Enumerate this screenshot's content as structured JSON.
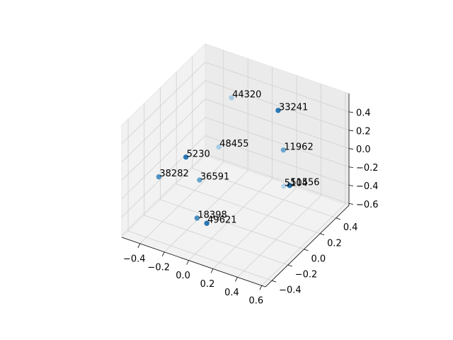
{
  "chart_data": {
    "type": "scatter3d",
    "point_labels": [
      "44320",
      "33241",
      "48455",
      "11962",
      "5230",
      "38282",
      "36591",
      "5104",
      "51556",
      "18398",
      "49621"
    ],
    "x": [
      -0.13,
      0.22,
      -0.3,
      0.23,
      -0.3,
      -0.45,
      -0.32,
      0.16,
      0.42,
      -0.07,
      0.01
    ],
    "y": [
      0.25,
      0.3,
      0.35,
      0.35,
      -0.06,
      -0.17,
      0.14,
      0.46,
      0.14,
      -0.27,
      -0.27
    ],
    "z": [
      0.47,
      0.45,
      -0.23,
      -0.02,
      0.01,
      -0.18,
      -0.42,
      -0.54,
      -0.14,
      -0.37,
      -0.39
    ],
    "colors": [
      "#a6cbe5",
      "#2c79b5",
      "#a9cde6",
      "#6ea7d0",
      "#2a77b4",
      "#4f92c4",
      "#6aa4ce",
      "#b7d5ea",
      "#1f6ca8",
      "#4a8ec1",
      "#2a77b4"
    ],
    "xlim": [
      -0.55,
      0.63
    ],
    "ylim": [
      -0.48,
      0.56
    ],
    "zlim": [
      -0.62,
      0.6
    ],
    "xticks": [
      {
        "value": -0.4,
        "label": "−0.4"
      },
      {
        "value": -0.2,
        "label": "−0.2"
      },
      {
        "value": 0.0,
        "label": "0.0"
      },
      0.2,
      0.4,
      0.6
    ],
    "yticks": [
      {
        "value": -0.4,
        "label": "−0.4"
      },
      {
        "value": -0.2,
        "label": "−0.2"
      },
      {
        "value": 0.0,
        "label": "0.0"
      },
      0.2,
      0.4
    ],
    "zticks": [
      {
        "value": -0.6,
        "label": "−0.6"
      },
      {
        "value": -0.4,
        "label": "−0.4"
      },
      {
        "value": -0.2,
        "label": "−0.2"
      },
      {
        "value": 0.0,
        "label": "0.0"
      },
      0.2,
      0.4
    ],
    "grid": true
  }
}
